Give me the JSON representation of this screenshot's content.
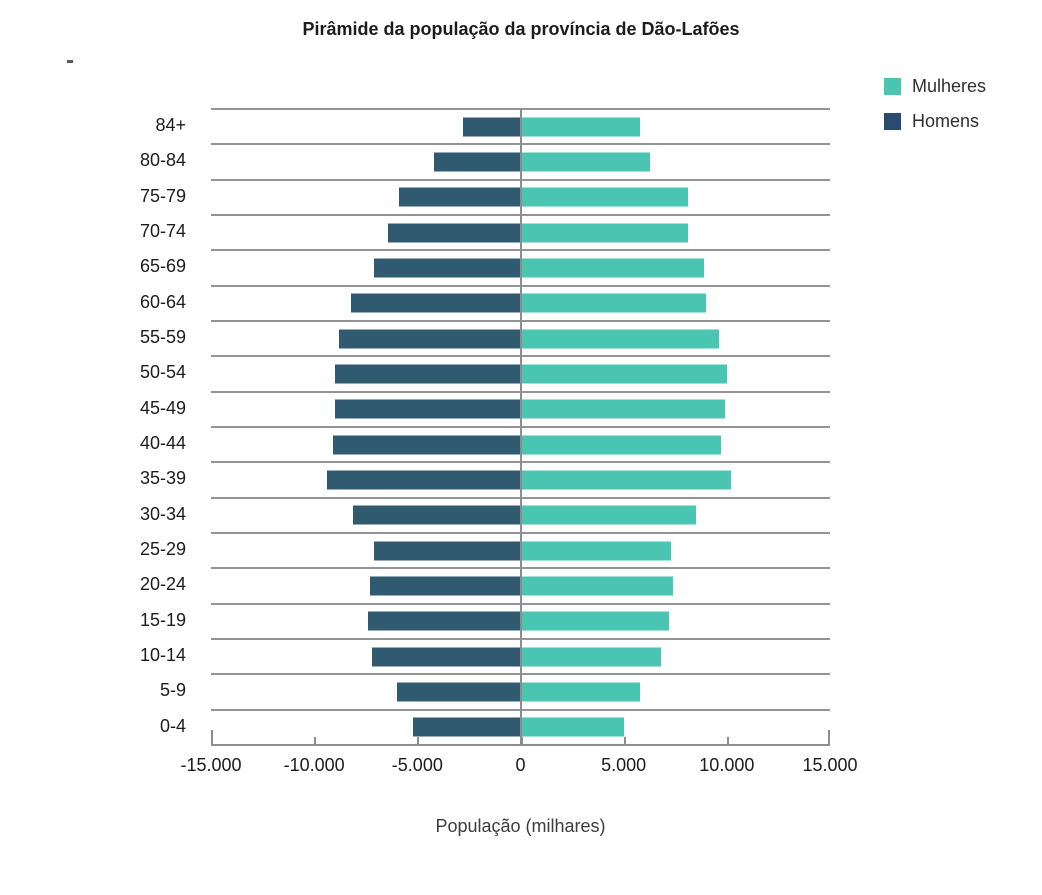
{
  "title": "Pirâmide da população da província de Dão-Lafões",
  "legend": {
    "position": "top-right",
    "items": [
      {
        "label": "Mulheres",
        "color": "#49C5B1"
      },
      {
        "label": "Homens",
        "color": "#2B4A70"
      }
    ]
  },
  "x_axis": {
    "title": "População (milhares)",
    "tick_labels": [
      "-15.000",
      "-10.000",
      "-5.000",
      "0",
      "5.000",
      "10.000",
      "15.000"
    ],
    "ticks": [
      -15000,
      -10000,
      -5000,
      0,
      5000,
      10000,
      15000
    ]
  },
  "chart_data": {
    "type": "bar",
    "subtype": "population-pyramid",
    "orientation": "horizontal",
    "title": "Pirâmide da população da província de Dão-Lafões",
    "categories": [
      "84+",
      "80-84",
      "75-79",
      "70-74",
      "65-69",
      "60-64",
      "55-59",
      "50-54",
      "45-49",
      "40-44",
      "35-39",
      "30-34",
      "25-29",
      "20-24",
      "15-19",
      "10-14",
      "5-9",
      "0-4"
    ],
    "series": [
      {
        "name": "Homens",
        "color": "#2F5A70",
        "values": [
          -2800,
          -4200,
          -5900,
          -6400,
          -7100,
          -8200,
          -8800,
          -9000,
          -9000,
          -9100,
          -9400,
          -8100,
          -7100,
          -7300,
          -7400,
          -7200,
          -6000,
          -5200
        ]
      },
      {
        "name": "Mulheres",
        "color": "#49C5B1",
        "values": [
          5800,
          6300,
          8100,
          8100,
          8900,
          9000,
          9600,
          10000,
          9900,
          9700,
          10200,
          8500,
          7300,
          7400,
          7200,
          6800,
          5800,
          5000
        ]
      }
    ],
    "xlabel": "População (milhares)",
    "ylabel": "",
    "xlim": [
      -15000,
      15000
    ],
    "x_tick_labels": [
      "-15.000",
      "-10.000",
      "-5.000",
      "0",
      "5.000",
      "10.000",
      "15.000"
    ],
    "grid": "horizontal-row-separators",
    "zero_axis_line": true,
    "legend_position": "top-right",
    "colors": {
      "mulheres": "#49C5B1",
      "homens_bar": "#2F5A70",
      "homens_legend": "#2B4A70",
      "gridline": "#949494"
    }
  }
}
